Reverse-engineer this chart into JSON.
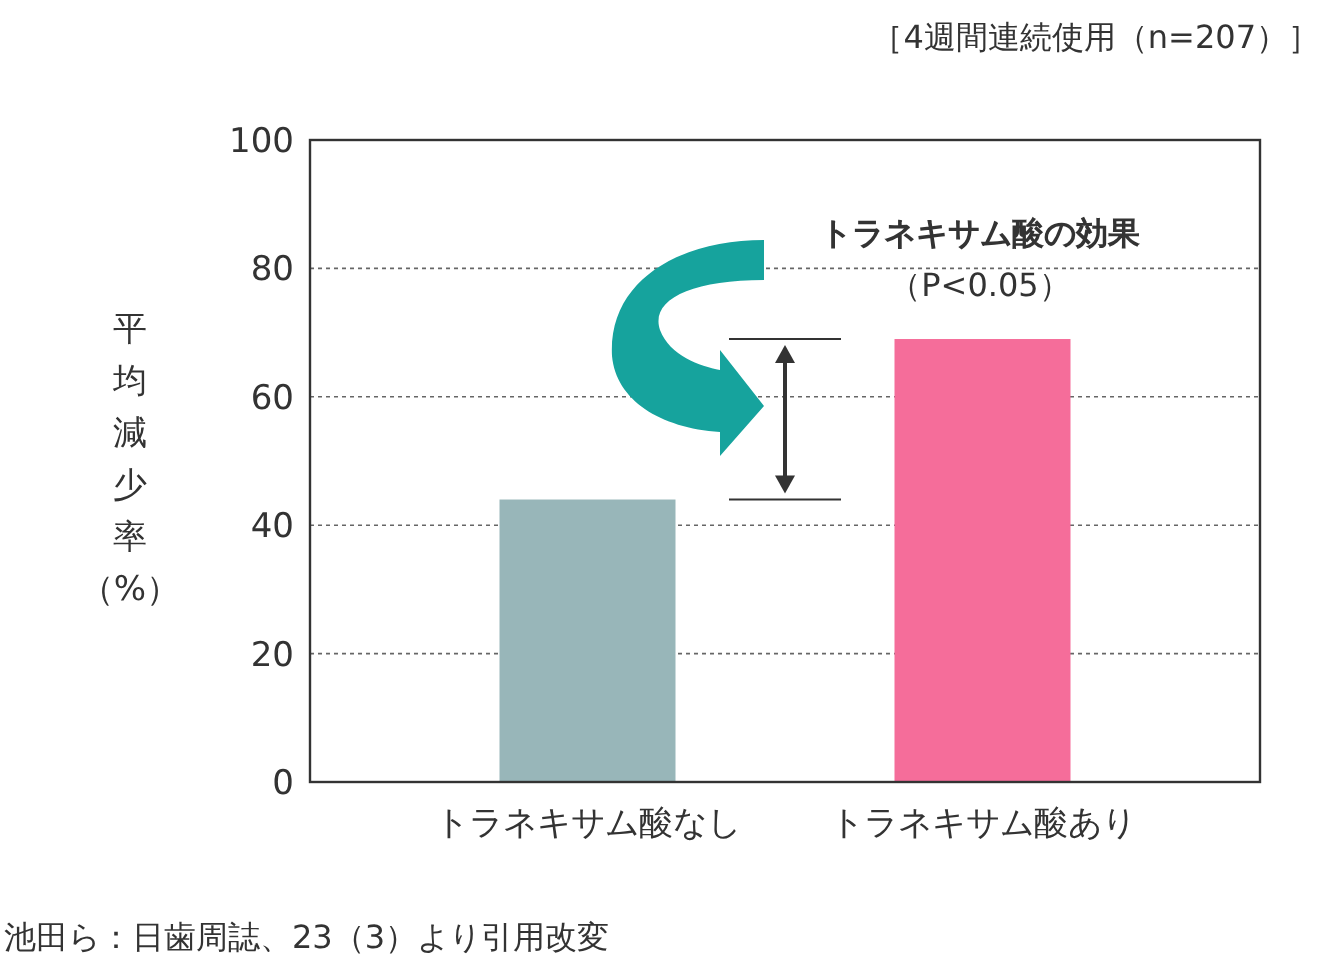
{
  "chart_data": {
    "type": "bar",
    "subtitle": "［4週間連続使用（n=207）］",
    "ylabel": "平均減少率（%）",
    "categories": [
      "トラネキサム酸なし",
      "トラネキサム酸あり"
    ],
    "values": [
      44,
      69
    ],
    "colors": [
      "#98b6b9",
      "#f56d9a"
    ],
    "ylim": [
      0,
      100
    ],
    "yticks": [
      0,
      20,
      40,
      60,
      80,
      100
    ],
    "grid": "y",
    "annotations": [
      "トラネキサム酸の効果",
      "（P<0.05）",
      "池田ら：日歯周誌、23（3）より引用改変"
    ]
  }
}
